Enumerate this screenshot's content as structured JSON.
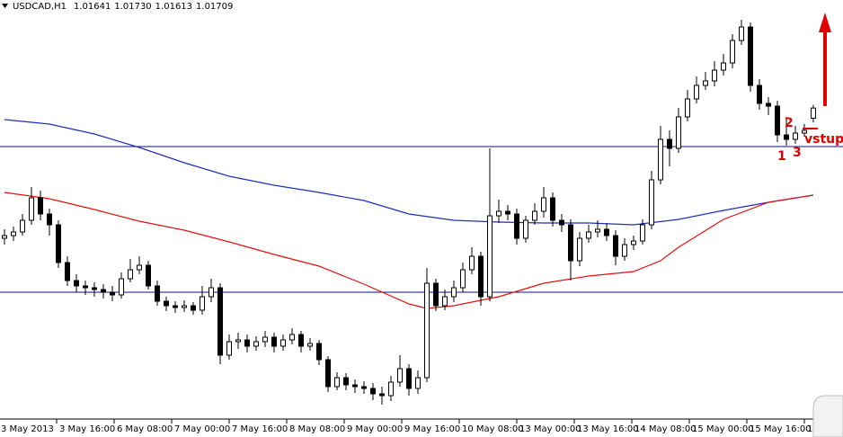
{
  "chart_data": {
    "type": "candlestick",
    "title": "USDCAD,H1",
    "header_values": [
      "1.01641",
      "1.01730",
      "1.01613",
      "1.01709"
    ],
    "open": [
      1.0084,
      1.00858,
      1.00882,
      1.0096,
      1.0111,
      1.01002,
      1.0093,
      1.00678,
      1.00558,
      1.00522,
      1.0051,
      1.00498,
      1.0048,
      1.00462,
      1.0057,
      1.0063,
      1.0066,
      1.00522,
      1.0042,
      1.0039,
      1.00378,
      1.0039,
      1.0036,
      1.0045,
      1.0051,
      1.0006,
      1.0015,
      1.00162,
      1.0012,
      1.0015,
      1.0018,
      1.0012,
      1.00162,
      1.00198,
      1.0012,
      1.00138,
      1.0003,
      0.9985,
      0.9991,
      0.99862,
      0.9985,
      0.99838,
      0.99802,
      0.9979,
      0.9988,
      0.9997,
      0.99838,
      0.9991,
      1.0054,
      1.0039,
      1.0045,
      1.0051,
      1.0063,
      1.0072,
      1.0045,
      1.0099,
      1.0102,
      1.01002,
      1.0084,
      1.0096,
      1.0102,
      1.0111,
      1.0096,
      1.0093,
      1.0069,
      1.0084,
      1.00882,
      1.009,
      1.00858,
      1.0072,
      1.00798,
      1.00822,
      1.0093,
      1.0123,
      1.015,
      1.0144,
      1.0165,
      1.0177,
      1.0186,
      1.0189,
      1.01962,
      1.0201,
      1.0216,
      1.0225,
      1.0186,
      1.0174,
      1.01722,
      1.0153,
      1.015,
      1.01542,
      1.01641
    ],
    "high": [
      1.009,
      1.00918,
      1.01002,
      1.01182,
      1.01158,
      1.01038,
      1.0096,
      1.0072,
      1.006,
      1.00558,
      1.00546,
      1.00534,
      1.00522,
      1.00612,
      1.00702,
      1.0072,
      1.0069,
      1.00558,
      1.0045,
      1.0042,
      1.00426,
      1.00414,
      1.00522,
      1.0057,
      1.0054,
      1.00198,
      1.0021,
      1.00198,
      1.00186,
      1.00222,
      1.0021,
      1.00198,
      1.0024,
      1.00222,
      1.00174,
      1.00162,
      1.00054,
      0.99946,
      0.9994,
      0.99898,
      0.99886,
      0.99874,
      0.9985,
      0.99922,
      1.0006,
      1.0,
      0.99958,
      1.00642,
      1.0057,
      1.00498,
      1.00558,
      1.00678,
      1.0078,
      1.0075,
      1.0144,
      1.01098,
      1.01062,
      1.01038,
      1.0099,
      1.01074,
      1.01182,
      1.01146,
      1.01002,
      1.00966,
      1.00882,
      1.0093,
      1.0096,
      1.00942,
      1.00894,
      1.0084,
      1.00858,
      1.00966,
      1.0129,
      1.0159,
      1.0156,
      1.0171,
      1.0183,
      1.0192,
      1.0195,
      1.02022,
      1.0207,
      1.02202,
      1.02298,
      1.0228,
      1.01902,
      1.01782,
      1.01758,
      1.0165,
      1.0159,
      1.01602,
      1.0173
    ],
    "low": [
      1.00798,
      1.00822,
      1.00858,
      1.0093,
      1.0096,
      1.00858,
      1.00642,
      1.00522,
      1.0048,
      1.00462,
      1.0045,
      1.00438,
      1.0042,
      1.00438,
      1.00546,
      1.006,
      1.00498,
      1.0039,
      1.00354,
      1.00342,
      1.00348,
      1.0033,
      1.0033,
      1.00414,
      1.0,
      1.0003,
      1.00102,
      1.00078,
      1.0009,
      1.00114,
      1.00078,
      1.0009,
      1.00132,
      1.00078,
      1.0009,
      0.99994,
      0.99814,
      0.99826,
      0.99826,
      0.99808,
      0.99802,
      0.9976,
      0.9973,
      0.99754,
      0.9985,
      0.9979,
      0.99802,
      0.9988,
      1.00354,
      1.0036,
      1.00414,
      1.0048,
      1.006,
      1.0039,
      1.0042,
      1.00942,
      1.0096,
      1.00798,
      1.0081,
      1.0093,
      1.00978,
      1.00918,
      1.00882,
      1.00558,
      1.00654,
      1.0081,
      1.00846,
      1.00822,
      1.0066,
      1.0069,
      1.00762,
      1.00798,
      1.009,
      1.012,
      1.0132,
      1.0141,
      1.0162,
      1.0174,
      1.0183,
      1.01854,
      1.01926,
      1.01974,
      1.0213,
      1.01818,
      1.01698,
      1.01662,
      1.01482,
      1.01458,
      1.0147,
      1.01518,
      1.01613
    ],
    "close": [
      1.00858,
      1.00882,
      1.0096,
      1.0111,
      1.01002,
      1.0093,
      1.00678,
      1.00558,
      1.00522,
      1.0051,
      1.00498,
      1.0048,
      1.00462,
      1.0057,
      1.0063,
      1.0066,
      1.00522,
      1.0042,
      1.0039,
      1.00378,
      1.0039,
      1.0036,
      1.0045,
      1.0051,
      1.0006,
      1.0015,
      1.00162,
      1.0012,
      1.0015,
      1.0018,
      1.0012,
      1.00162,
      1.00198,
      1.0012,
      1.00138,
      1.0003,
      0.9985,
      0.9991,
      0.99862,
      0.9985,
      0.99838,
      0.99802,
      0.9979,
      0.9988,
      0.9997,
      0.99838,
      0.9991,
      1.0054,
      1.0039,
      1.0045,
      1.0051,
      1.0063,
      1.0072,
      1.0045,
      1.0099,
      1.0102,
      1.01002,
      1.0084,
      1.0096,
      1.0102,
      1.0111,
      1.0096,
      1.0093,
      1.0069,
      1.0084,
      1.00882,
      1.009,
      1.00858,
      1.0072,
      1.00798,
      1.00822,
      1.0093,
      1.0123,
      1.015,
      1.0144,
      1.0165,
      1.0177,
      1.0186,
      1.0189,
      1.01962,
      1.0201,
      1.0216,
      1.0225,
      1.0186,
      1.0174,
      1.01722,
      1.0153,
      1.015,
      1.01542,
      1.0156,
      1.01709
    ],
    "up_color": "#ffffff",
    "down_color": "#000000",
    "wick_color": "#000000",
    "moving_averages": [
      {
        "color": "#1f2fb8",
        "x": [
          0,
          5,
          10,
          15,
          20,
          25,
          30,
          35,
          40,
          45,
          50,
          55,
          60,
          65,
          70,
          75,
          80,
          85,
          90
        ],
        "values": [
          1.01632,
          1.01602,
          1.01536,
          1.01446,
          1.01344,
          1.01254,
          1.01194,
          1.01146,
          1.01092,
          1.01002,
          1.0096,
          1.00948,
          1.00942,
          1.00942,
          1.0093,
          1.00966,
          1.01026,
          1.0108,
          1.01128
        ]
      },
      {
        "color": "#e01010",
        "x": [
          0,
          5,
          10,
          15,
          20,
          25,
          30,
          35,
          40,
          45,
          47,
          50,
          55,
          60,
          65,
          70,
          73,
          75,
          80,
          85,
          90
        ],
        "values": [
          1.01146,
          1.01104,
          1.01032,
          1.00954,
          1.00894,
          1.00816,
          1.00732,
          1.00654,
          1.00534,
          1.00402,
          1.00372,
          1.0039,
          1.0045,
          1.0054,
          1.00588,
          1.00618,
          1.0069,
          1.0078,
          1.00966,
          1.0108,
          1.01128
        ]
      }
    ],
    "hlines": {
      "color": "#10107a",
      "values": [
        1.01452,
        1.0048
      ]
    },
    "xlim": [
      -0.5,
      93.3
    ],
    "ylim": [
      0.99514,
      1.0243
    ],
    "xticks": [
      {
        "value": -0.7,
        "label": "3 May 2013"
      },
      {
        "value": 5.8,
        "label": "3 May 16:00"
      },
      {
        "value": 12.2,
        "label": "6 May 08:00"
      },
      {
        "value": 18.6,
        "label": "7 May 00:00"
      },
      {
        "value": 25,
        "label": "7 May 16:00"
      },
      {
        "value": 31.4,
        "label": "8 May 08:00"
      },
      {
        "value": 37.8,
        "label": "9 May 00:00"
      },
      {
        "value": 44.2,
        "label": "9 May 16:00"
      },
      {
        "value": 50.6,
        "label": "10 May 08:00"
      },
      {
        "value": 57,
        "label": "13 May 00:00"
      },
      {
        "value": 63.4,
        "label": "13 May 16:00"
      },
      {
        "value": 69.8,
        "label": "14 May 08:00"
      },
      {
        "value": 76.2,
        "label": "15 May 00:00"
      },
      {
        "value": 82.6,
        "label": "15 May 16:00"
      },
      {
        "value": 89,
        "label": "16"
      }
    ],
    "annotations": [
      "1",
      "2",
      "3",
      "vstup"
    ]
  }
}
